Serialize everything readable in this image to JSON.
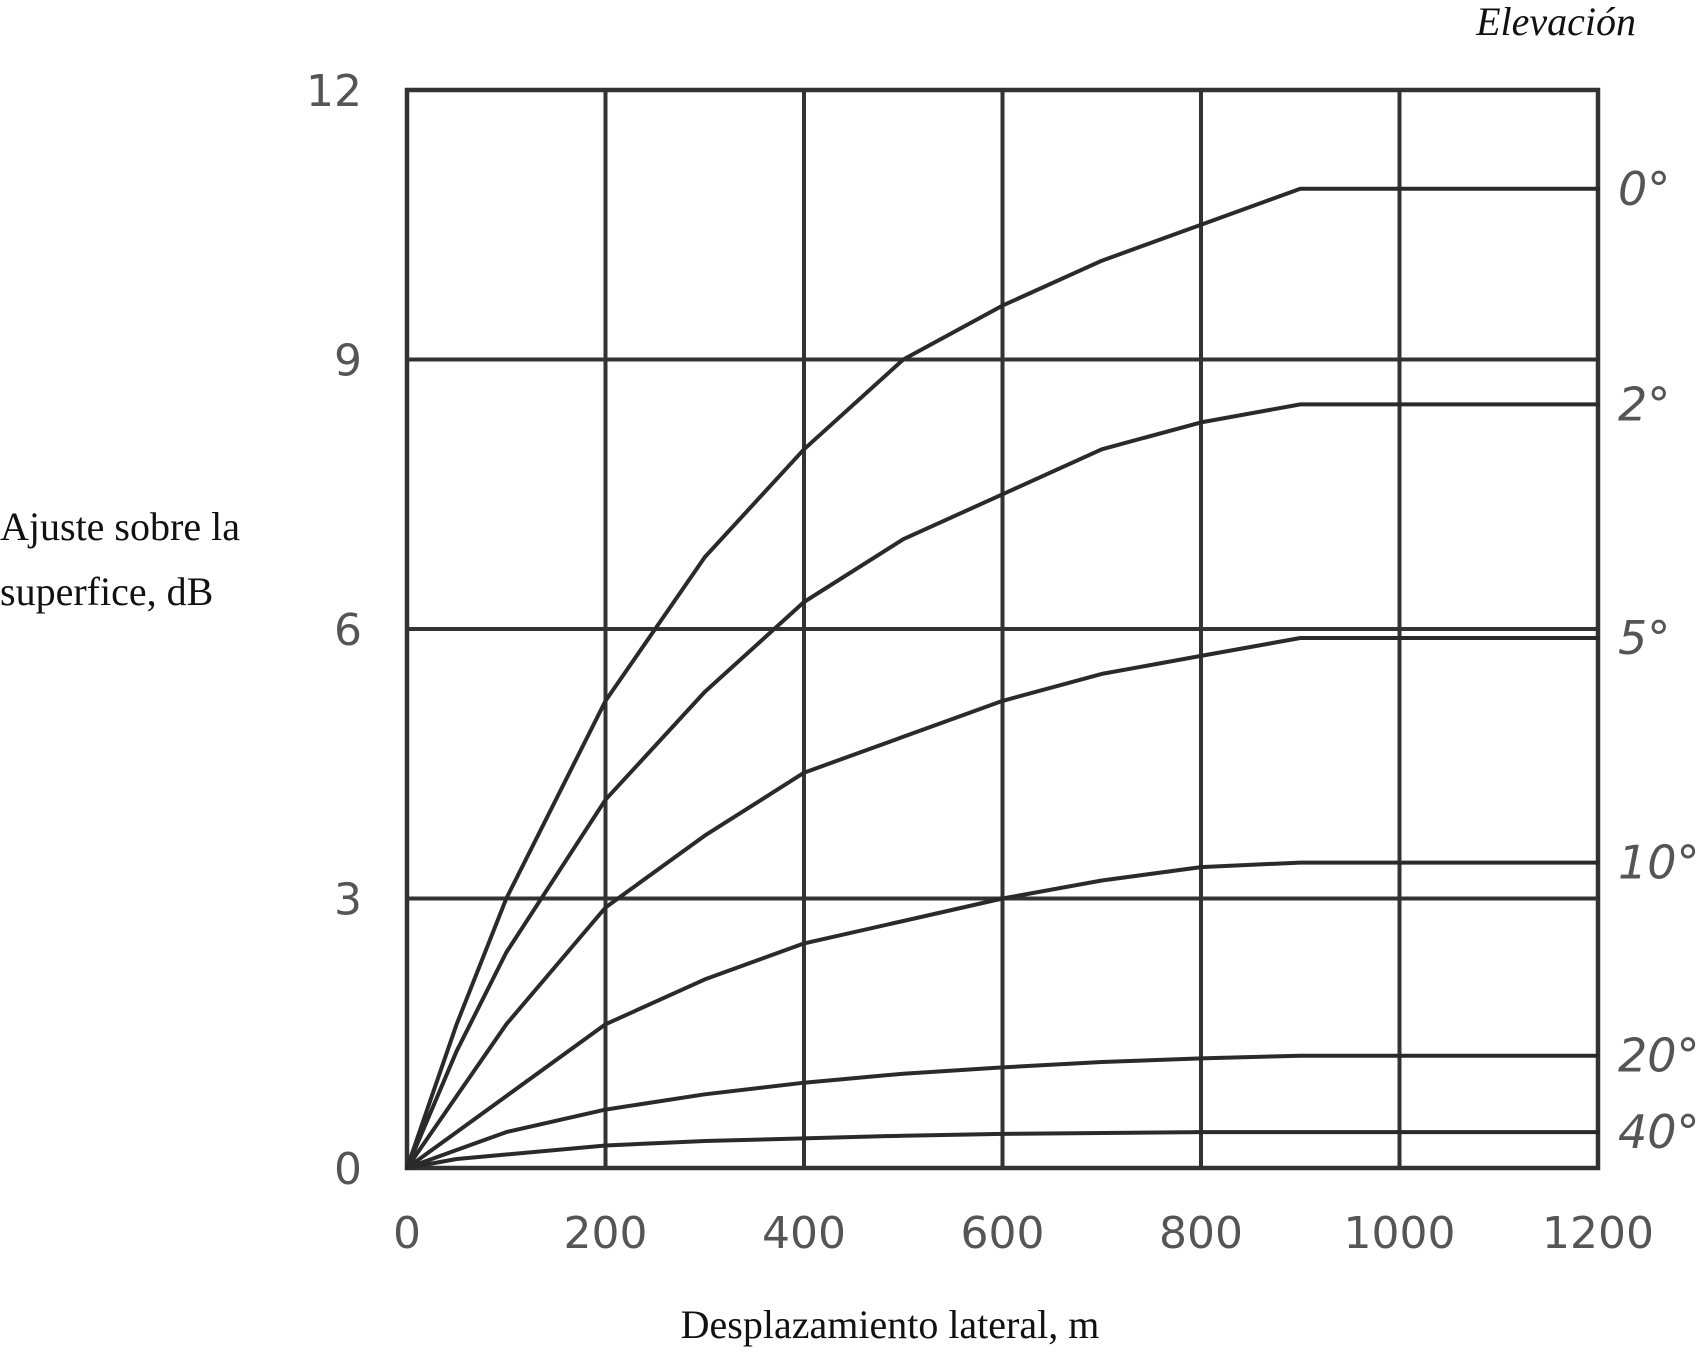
{
  "chart_data": {
    "type": "line",
    "title": "",
    "xlabel": "Desplazamiento lateral, m",
    "ylabel_lines": [
      "Ajuste sobre la",
      "superfice, dB"
    ],
    "legend_title": "Elevación",
    "legend_placement": "right",
    "xlim": [
      0,
      1200
    ],
    "ylim": [
      0,
      12
    ],
    "x_ticks": [
      0,
      200,
      400,
      600,
      800,
      1000,
      1200
    ],
    "y_ticks": [
      0,
      3,
      6,
      9,
      12
    ],
    "grid": true,
    "x": [
      0,
      50,
      100,
      200,
      300,
      400,
      500,
      600,
      700,
      800,
      900,
      1000,
      1100,
      1200
    ],
    "series": [
      {
        "name": "0°",
        "values": [
          0,
          1.6,
          3.0,
          5.2,
          6.8,
          8.0,
          9.0,
          9.6,
          10.1,
          10.5,
          10.9,
          10.9,
          10.9,
          10.9
        ]
      },
      {
        "name": "2°",
        "values": [
          0,
          1.3,
          2.4,
          4.1,
          5.3,
          6.3,
          7.0,
          7.5,
          8.0,
          8.3,
          8.5,
          8.5,
          8.5,
          8.5
        ]
      },
      {
        "name": "5°",
        "values": [
          0,
          0.8,
          1.6,
          2.9,
          3.7,
          4.4,
          4.8,
          5.2,
          5.5,
          5.7,
          5.9,
          5.9,
          5.9,
          5.9
        ]
      },
      {
        "name": "10°",
        "values": [
          0,
          0.4,
          0.8,
          1.6,
          2.1,
          2.5,
          2.75,
          3.0,
          3.2,
          3.35,
          3.4,
          3.4,
          3.4,
          3.4
        ]
      },
      {
        "name": "20°",
        "values": [
          0,
          0.2,
          0.4,
          0.65,
          0.82,
          0.95,
          1.05,
          1.12,
          1.18,
          1.22,
          1.25,
          1.25,
          1.25,
          1.25
        ]
      },
      {
        "name": "40°",
        "values": [
          0,
          0.1,
          0.15,
          0.25,
          0.3,
          0.33,
          0.36,
          0.38,
          0.39,
          0.4,
          0.4,
          0.4,
          0.4,
          0.4
        ]
      }
    ]
  }
}
